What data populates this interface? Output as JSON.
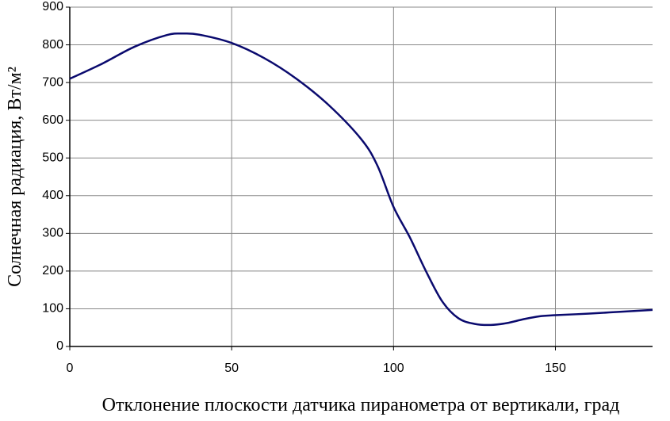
{
  "chart_data": {
    "type": "line",
    "x_label": "Отклонение плоскости датчика пиранометра от вертикали, град",
    "y_label": "Солнечная радиация, Вт/м²",
    "x": [
      0,
      10,
      20,
      30,
      35,
      40,
      50,
      60,
      70,
      80,
      90,
      95,
      100,
      105,
      110,
      115,
      120,
      125,
      130,
      135,
      140,
      145,
      150,
      160,
      170,
      180
    ],
    "series": [
      {
        "name": "Солнечная радиация",
        "color": "#0a0a6e",
        "values": [
          710,
          750,
          795,
          826,
          830,
          827,
          805,
          765,
          710,
          640,
          550,
          480,
          370,
          290,
          200,
          120,
          75,
          60,
          57,
          62,
          72,
          80,
          83,
          87,
          92,
          97
        ]
      }
    ],
    "xlim": [
      0,
      180
    ],
    "xticks": [
      0,
      50,
      100,
      150
    ],
    "ylim": [
      0,
      900
    ],
    "yticks": [
      0,
      100,
      200,
      300,
      400,
      500,
      600,
      700,
      800,
      900
    ],
    "grid": true
  }
}
